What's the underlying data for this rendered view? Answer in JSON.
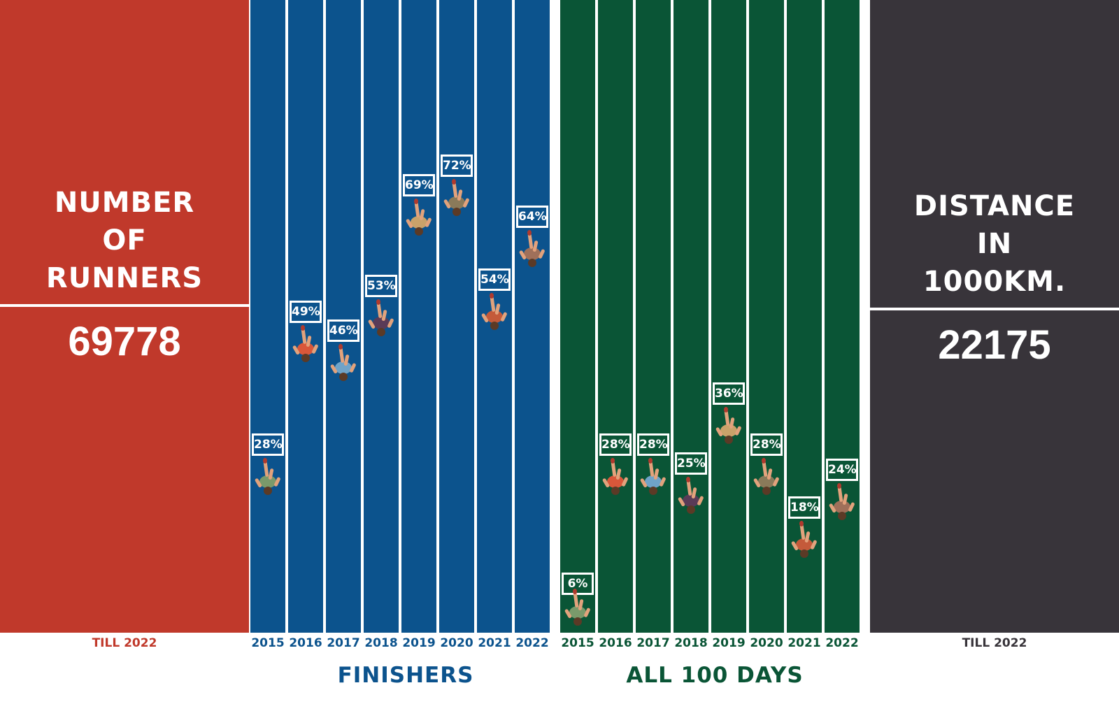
{
  "left_panel": {
    "title": "NUMBER\nOF\nRUNNERS",
    "value": "69778",
    "caption": "TILL 2022",
    "color": "#c0392b"
  },
  "right_panel": {
    "title": "DISTANCE\nIN\n1000KM.",
    "value": "22175",
    "caption": "TILL 2022",
    "color": "#38343a"
  },
  "colors": {
    "finishers": "#0c538d",
    "all_100_days": "#0a5536",
    "finishers_label": "#0c538d",
    "all_100_days_label": "#0a5536",
    "left_caption": "#c0392b",
    "right_caption": "#38343a"
  },
  "chart_data": {
    "type": "bar",
    "categories": [
      "2015",
      "2016",
      "2017",
      "2018",
      "2019",
      "2020",
      "2021",
      "2022"
    ],
    "ylim": [
      0,
      100
    ],
    "series": [
      {
        "name": "FINISHERS",
        "values": [
          28,
          49,
          46,
          53,
          69,
          72,
          54,
          64
        ],
        "labels": [
          "28%",
          "49%",
          "46%",
          "53%",
          "69%",
          "72%",
          "54%",
          "64%"
        ]
      },
      {
        "name": "ALL 100 DAYS",
        "values": [
          6,
          28,
          28,
          25,
          36,
          28,
          18,
          24
        ],
        "labels": [
          "6%",
          "28%",
          "28%",
          "25%",
          "36%",
          "28%",
          "18%",
          "24%"
        ]
      }
    ]
  }
}
